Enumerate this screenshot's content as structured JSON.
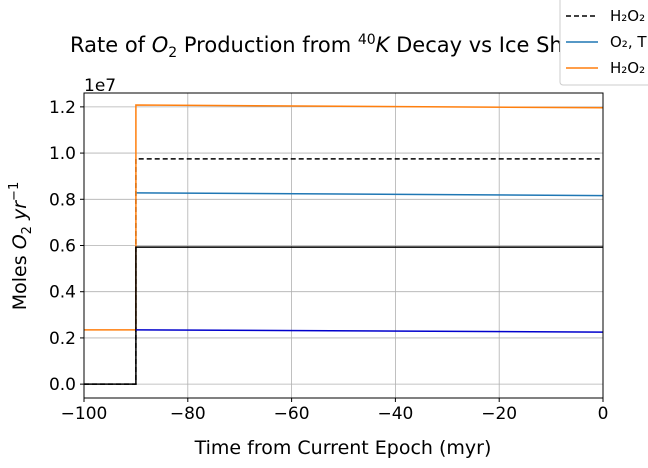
{
  "chart_data": {
    "type": "line",
    "title_parts": [
      "Rate of ",
      "O",
      "2",
      " Production from ",
      "40",
      "K",
      " Decay vs Ice Shel"
    ],
    "xlabel": "Time from Current Epoch (myr)",
    "ylabel_parts": [
      "Moles ",
      "O",
      "2",
      " yr",
      "−1"
    ],
    "y_offset_label": "1e7",
    "xlim": [
      -100,
      0
    ],
    "ylim": [
      -0.06,
      1.26
    ],
    "x_ticks": [
      -100,
      -80,
      -60,
      -40,
      -20,
      0
    ],
    "x_tick_labels": [
      "−100",
      "−80",
      "−60",
      "−40",
      "−20",
      "0"
    ],
    "y_ticks": [
      0.0,
      0.2,
      0.4,
      0.6,
      0.8,
      1.0,
      1.2
    ],
    "y_tick_labels": [
      "0.0",
      "0.2",
      "0.4",
      "0.6",
      "0.8",
      "1.0",
      "1.2"
    ],
    "grid": true,
    "legend_position": "top-right (clipped)",
    "legend": [
      {
        "label": "H₂O₂",
        "color": "#000000",
        "dash": "dashed"
      },
      {
        "label": "O₂, T",
        "color": "#1f77b4",
        "dash": "solid"
      },
      {
        "label": "H₂O₂",
        "color": "#ff7f0e",
        "dash": "solid"
      }
    ],
    "series": [
      {
        "key": "h2o2-dashed",
        "color": "#000000",
        "dash": "dashed",
        "x": [
          -100,
          -90,
          -90,
          0
        ],
        "y": [
          0.0,
          0.0,
          0.975,
          0.975
        ]
      },
      {
        "key": "blue-light",
        "color": "#1f77b4",
        "dash": "solid",
        "x": [
          -90,
          0
        ],
        "y": [
          0.828,
          0.816
        ]
      },
      {
        "key": "orange",
        "color": "#ff7f0e",
        "dash": "solid",
        "x": [
          -100,
          -90,
          -90,
          0
        ],
        "y": [
          0.235,
          0.235,
          1.208,
          1.196
        ]
      },
      {
        "key": "black-solid",
        "color": "#000000",
        "dash": "solid",
        "x": [
          -100,
          -90,
          -90,
          0
        ],
        "y": [
          0.0,
          0.0,
          0.593,
          0.593
        ]
      },
      {
        "key": "blue-dark",
        "color": "#0000cc",
        "dash": "solid",
        "x": [
          -90,
          0
        ],
        "y": [
          0.235,
          0.225
        ]
      }
    ]
  }
}
